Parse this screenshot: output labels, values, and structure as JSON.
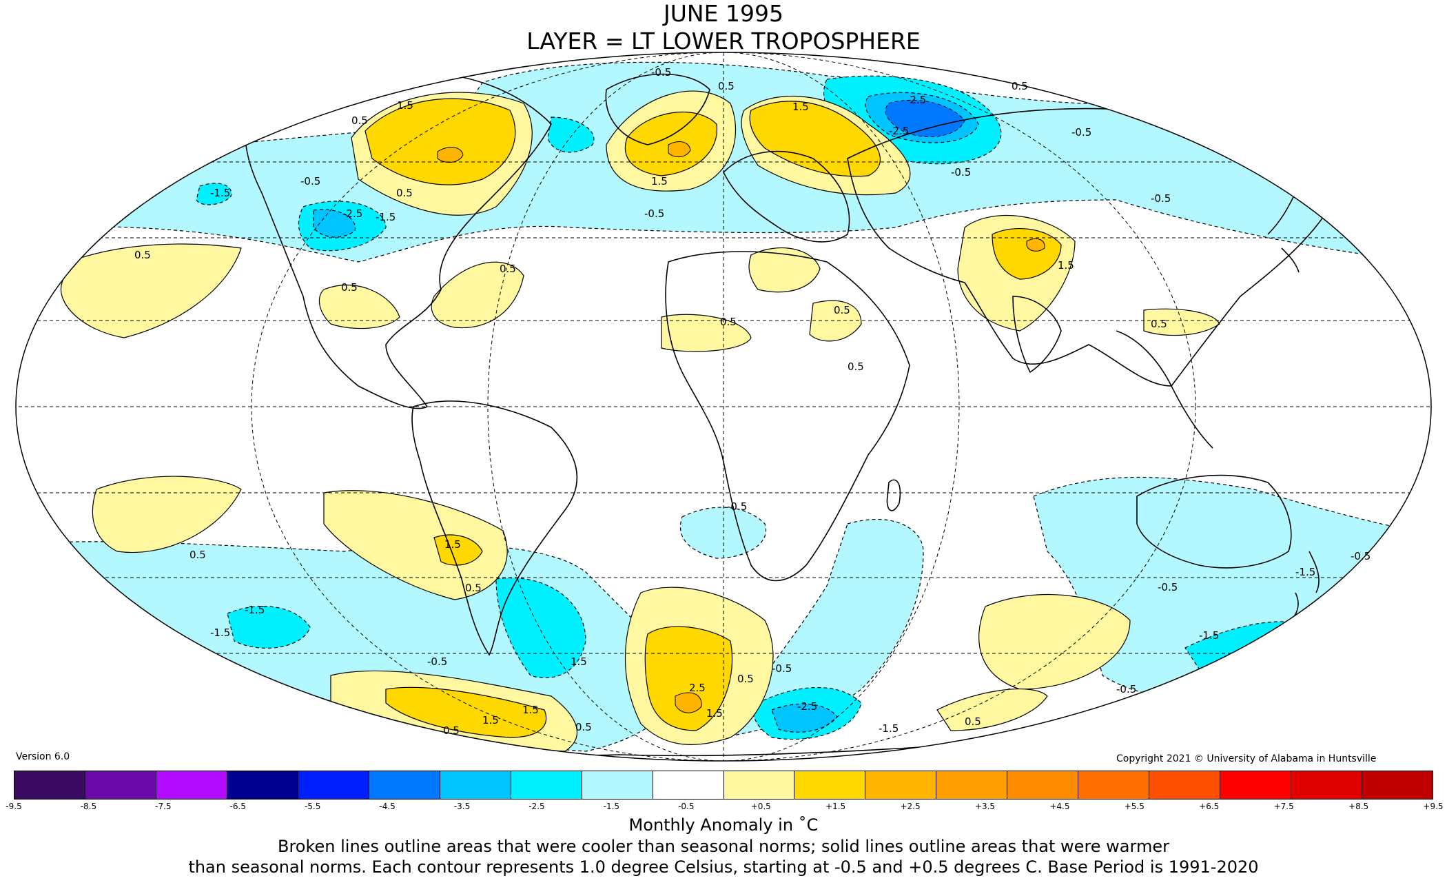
{
  "title": "JUNE 1995",
  "subtitle": "LAYER = LT LOWER TROPOSPHERE",
  "version": "Version 6.0",
  "copyright": "Copyright 2021 © University of Alabama in Huntsville",
  "colorbar": {
    "label": "Monthly Anomaly in ˚C",
    "ticks": [
      "-9.5",
      "-8.5",
      "-7.5",
      "-6.5",
      "-5.5",
      "-4.5",
      "-3.5",
      "-2.5",
      "-1.5",
      "-0.5",
      "+0.5",
      "+1.5",
      "+2.5",
      "+3.5",
      "+4.5",
      "+5.5",
      "+6.5",
      "+7.5",
      "+8.5",
      "+9.5"
    ],
    "colors": [
      "#3a0a63",
      "#6a0aa8",
      "#b10aff",
      "#00008f",
      "#0020ff",
      "#0078ff",
      "#00c4ff",
      "#00f0ff",
      "#b4f8ff",
      "#ffffff",
      "#fff8a0",
      "#ffd800",
      "#ffb400",
      "#ffa000",
      "#ff8c00",
      "#ff7000",
      "#ff5000",
      "#ff0000",
      "#e00000",
      "#c00000"
    ]
  },
  "notes": {
    "line1": "Broken lines outline areas that were cooler than seasonal norms; solid lines outline areas that were warmer",
    "line2": "than seasonal norms. Each contour represents 1.0 degree Celsius, starting at -0.5 and +0.5 degrees C. Base Period is 1991-2020"
  },
  "contour_labels": {
    "pos05": "0.5",
    "pos15": "1.5",
    "pos25": "2.5",
    "neg05": "-0.5",
    "neg15": "-1.5",
    "neg25": "-2.5"
  }
}
